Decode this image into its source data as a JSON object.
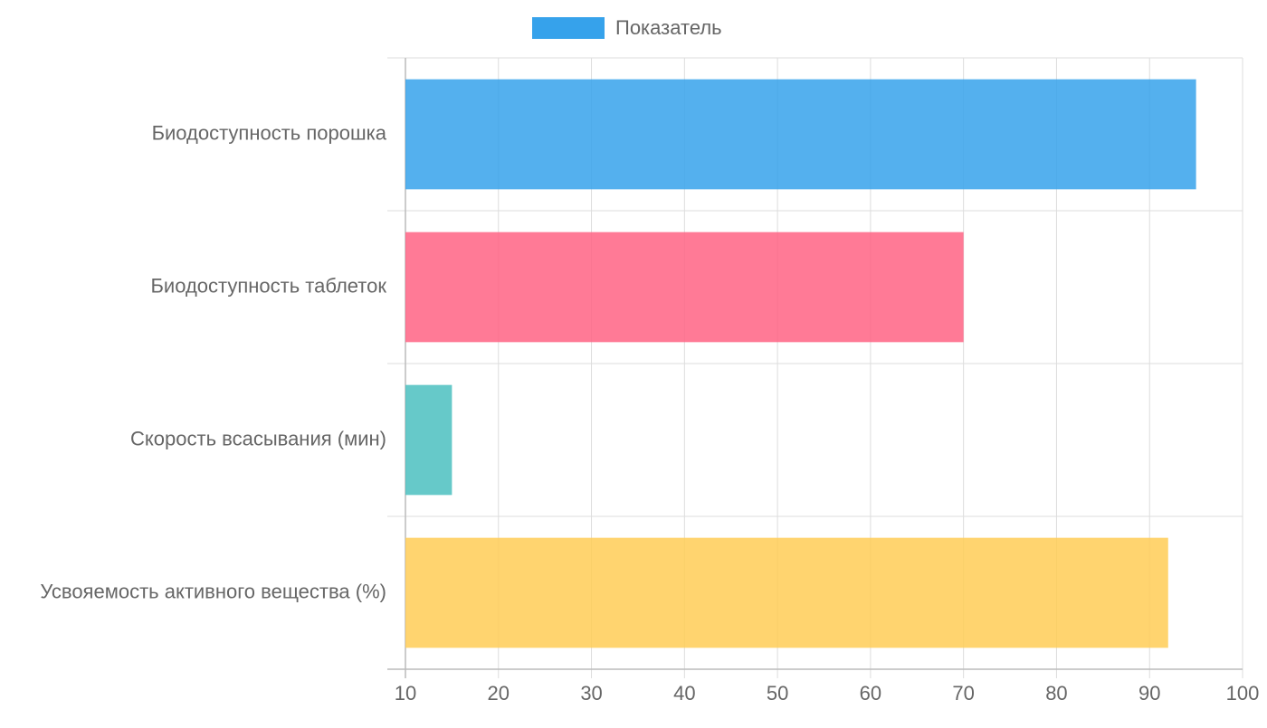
{
  "legend": {
    "label": "Показатель",
    "color": "#36A2EB"
  },
  "chart_data": {
    "type": "bar",
    "orientation": "horizontal",
    "categories": [
      "Биодоступность порошка",
      "Биодоступность таблеток",
      "Скорость всасывания (мин)",
      "Усвояемость активного вещества (%)"
    ],
    "series": [
      {
        "name": "Показатель",
        "values": [
          95,
          70,
          15,
          92
        ],
        "colors": [
          "#36A2EB",
          "#FF6384",
          "#4BC0C0",
          "#FFCD56"
        ]
      }
    ],
    "xlim": [
      10,
      100
    ],
    "xticks": [
      10,
      20,
      30,
      40,
      50,
      60,
      70,
      80,
      90,
      100
    ],
    "grid": true,
    "legend_position": "top"
  }
}
